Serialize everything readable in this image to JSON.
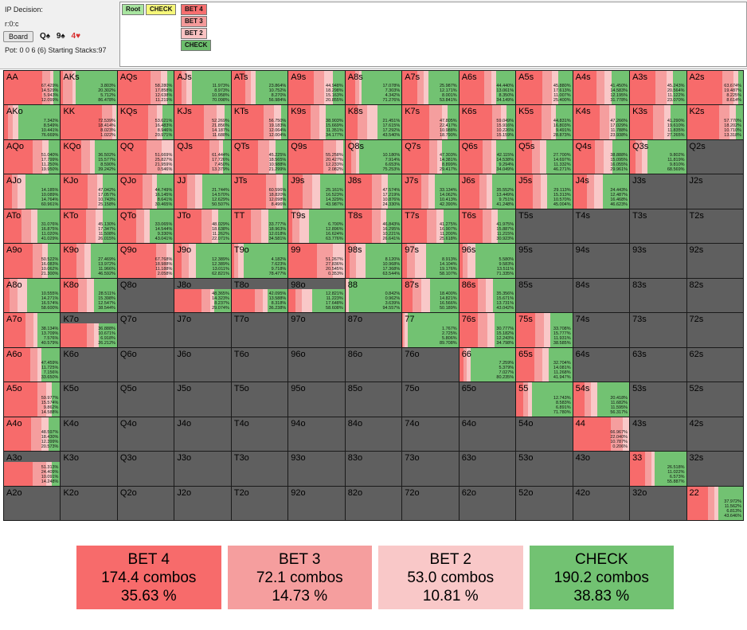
{
  "header": {
    "decision_label": "IP Decision:",
    "line": "r:0:c",
    "board_button": "Board",
    "board_cards": [
      {
        "text": "Q♠",
        "color": "black"
      },
      {
        "text": "9♠",
        "color": "black"
      },
      {
        "text": "4♥",
        "color": "red"
      }
    ],
    "pot_text": "Pot: 0 0 6 (6) Starting Stacks:97"
  },
  "tree": {
    "nodes": [
      {
        "label": "Root",
        "color": "#a8e5a0"
      },
      {
        "label": "CHECK",
        "color": "#f6f77a"
      },
      {
        "label": "BET 4",
        "color": "#f66f6f"
      },
      {
        "label": "BET 3",
        "color": "#f49a9a"
      },
      {
        "label": "BET 2",
        "color": "#f9c2c2"
      },
      {
        "label": "CHECK",
        "color": "#6cbd6c"
      }
    ]
  },
  "colors": {
    "bet4": "#f76b6b",
    "bet3": "#f59e9e",
    "bet2": "#f9c8c8",
    "check": "#72c272",
    "empty": "#5f5f5f"
  },
  "grid": [
    [
      {
        "hand": "AA",
        "f": [
          67.429,
          14.529,
          5.943,
          12.099
        ]
      },
      {
        "hand": "AKs",
        "f": [
          3.803,
          20.302,
          5.712,
          86.478
        ]
      },
      {
        "hand": "AQs",
        "f": [
          58.28,
          17.858,
          12.638,
          11.219
        ]
      },
      {
        "hand": "AJs",
        "f": [
          11.973,
          8.973,
          10.958,
          70.098
        ]
      },
      {
        "hand": "ATs",
        "f": [
          23.864,
          10.752,
          8.27,
          56.984
        ]
      },
      {
        "hand": "A9s",
        "f": [
          44.948,
          18.298,
          15.163,
          20.855
        ]
      },
      {
        "hand": "A8s",
        "f": [
          17.078,
          7.303,
          4.342,
          71.276
        ]
      },
      {
        "hand": "A7s",
        "f": [
          25.987,
          12.171,
          8.001,
          53.841
        ]
      },
      {
        "hand": "A6s",
        "f": [
          44.44,
          13.061,
          8.35,
          34.149
        ]
      },
      {
        "hand": "A5s",
        "f": [
          45.88,
          17.613,
          11.007,
          25.4
        ]
      },
      {
        "hand": "A4s",
        "f": [
          41.45,
          14.583,
          12.195,
          31.778
        ]
      },
      {
        "hand": "A3s",
        "f": [
          45.243,
          20.564,
          11.122,
          23.07
        ]
      },
      {
        "hand": "A2s",
        "f": [
          63.674,
          19.487,
          8.225,
          8.614
        ]
      }
    ],
    [
      {
        "hand": "AKo",
        "f": [
          7.342,
          8.549,
          10.441,
          76.669
        ]
      },
      {
        "hand": "KK",
        "f": [
          72.539,
          18.414,
          8.023,
          1.022
        ]
      },
      {
        "hand": "KQs",
        "f": [
          53.621,
          16.483,
          8.946,
          20.971
        ]
      },
      {
        "hand": "KJs",
        "f": [
          52.269,
          21.856,
          14.187,
          11.688
        ]
      },
      {
        "hand": "KTs",
        "f": [
          56.75,
          19.183,
          12.064,
          12.004
        ]
      },
      {
        "hand": "K9s",
        "f": [
          38.903,
          15.669,
          11.351,
          34.177
        ]
      },
      {
        "hand": "K8s",
        "f": [
          21.451,
          17.615,
          17.292,
          43.54
        ]
      },
      {
        "hand": "K7s",
        "f": [
          47.805,
          22.417,
          10.988,
          18.79
        ]
      },
      {
        "hand": "K6s",
        "f": [
          59.049,
          15.916,
          10.226,
          15.159
        ]
      },
      {
        "hand": "K5s",
        "f": [
          44.831,
          16.803,
          9.491,
          28.873
        ]
      },
      {
        "hand": "K4s",
        "f": [
          47.266,
          17.029,
          11.788,
          23.938
        ]
      },
      {
        "hand": "K3s",
        "f": [
          41.29,
          19.61,
          11.835,
          27.265
        ]
      },
      {
        "hand": "K2s",
        "f": [
          57.77,
          18.202,
          10.71,
          13.318
        ]
      }
    ],
    [
      {
        "hand": "AQo",
        "f": [
          51.04,
          17.799,
          11.25,
          19.95
        ]
      },
      {
        "hand": "KQo",
        "f": [
          36.502,
          15.577,
          8.59,
          39.242
        ]
      },
      {
        "hand": "QQ",
        "f": [
          51.669,
          25.827,
          21.959,
          0.546
        ]
      },
      {
        "hand": "QJs",
        "f": [
          61.444,
          17.726,
          7.45,
          13.379
        ]
      },
      {
        "hand": "QTs",
        "f": [
          45.225,
          18.565,
          10.988,
          21.299
        ]
      },
      {
        "hand": "Q9s",
        "f": [
          55.258,
          20.427,
          12.233,
          2.082
        ]
      },
      {
        "hand": "Q8s",
        "f": [
          10.18,
          7.914,
          6.653,
          75.253
        ]
      },
      {
        "hand": "Q7s",
        "f": [
          47.303,
          14.381,
          8.899,
          29.417
        ]
      },
      {
        "hand": "Q6s",
        "f": [
          42.115,
          14.538,
          9.294,
          34.049
        ]
      },
      {
        "hand": "Q5s",
        "f": [
          27.7,
          14.697,
          11.332,
          46.271
        ]
      },
      {
        "hand": "Q4s",
        "f": [
          38.888,
          15.095,
          16.055,
          29.961
        ]
      },
      {
        "hand": "Q3s",
        "f": [
          9.802,
          11.819,
          9.81,
          68.569
        ]
      },
      {
        "hand": "Q2s",
        "f": null
      }
    ],
    [
      {
        "hand": "AJo",
        "f": [
          14.185,
          10.089,
          14.764,
          60.961
        ]
      },
      {
        "hand": "KJo",
        "f": [
          47.042,
          17.057,
          10.743,
          25.158
        ]
      },
      {
        "hand": "QJo",
        "f": [
          44.749,
          16.145,
          8.641,
          30.465
        ]
      },
      {
        "hand": "JJ",
        "f": [
          21.744,
          14.57,
          12.629,
          50.507
        ]
      },
      {
        "hand": "JTs",
        "f": [
          60.596,
          18.82,
          12.098,
          8.496
        ]
      },
      {
        "hand": "J9s",
        "f": [
          25.161,
          16.523,
          14.329,
          43.987
        ]
      },
      {
        "hand": "J8s",
        "f": [
          47.574,
          17.219,
          10.876,
          24.33
        ]
      },
      {
        "hand": "J7s",
        "f": [
          33.134,
          14.062,
          10.413,
          42.39
        ]
      },
      {
        "hand": "J6s",
        "f": [
          35.552,
          13.449,
          9.751,
          41.248
        ]
      },
      {
        "hand": "J5s",
        "f": [
          29.113,
          15.313,
          10.57,
          45.004
        ]
      },
      {
        "hand": "J4s",
        "f": [
          24.443,
          12.487,
          16.468,
          46.623
        ]
      },
      {
        "hand": "J3s",
        "f": null
      },
      {
        "hand": "J2s",
        "f": null
      }
    ],
    [
      {
        "hand": "ATo",
        "f": [
          31.076,
          16.875,
          11.02,
          41.029
        ]
      },
      {
        "hand": "KTo",
        "f": [
          45.13,
          17.347,
          11.508,
          26.015
        ]
      },
      {
        "hand": "QTo",
        "f": [
          33.065,
          14.544,
          9.33,
          43.041
        ]
      },
      {
        "hand": "JTo",
        "f": [
          48.029,
          18.638,
          11.262,
          22.071
        ]
      },
      {
        "hand": "TT",
        "f": [
          33.777,
          18.963,
          12.018,
          34.581
        ]
      },
      {
        "hand": "T9s",
        "f": [
          6.7,
          12.896,
          16.624,
          63.776
        ]
      },
      {
        "hand": "T8s",
        "f": [
          46.843,
          16.295,
          10.221,
          26.641
        ]
      },
      {
        "hand": "T7s",
        "f": [
          41.275,
          16.907,
          11.2,
          25.618
        ]
      },
      {
        "hand": "T6s",
        "f": [
          41.975,
          15.887,
          11.215,
          30.923
        ]
      },
      {
        "hand": "T5s",
        "f": null
      },
      {
        "hand": "T4s",
        "f": null
      },
      {
        "hand": "T3s",
        "f": null
      },
      {
        "hand": "T2s",
        "f": null
      }
    ],
    [
      {
        "hand": "A9o",
        "f": [
          50.522,
          16.083,
          10.062,
          21.3
        ]
      },
      {
        "hand": "K9o",
        "f": [
          27.469,
          13.972,
          11.966,
          46.592
        ]
      },
      {
        "hand": "Q9o",
        "f": [
          67.768,
          18.988,
          11.188,
          2.058
        ]
      },
      {
        "hand": "J9o",
        "f": [
          12.389,
          12.389,
          13.011,
          62.821
        ]
      },
      {
        "hand": "T9o",
        "f": [
          4.182,
          7.623,
          9.718,
          78.477
        ]
      },
      {
        "hand": "99",
        "f": [
          51.267,
          27.836,
          20.545,
          0.353
        ]
      },
      {
        "hand": "98s",
        "f": [
          8.12,
          10.968,
          17.368,
          63.544
        ]
      },
      {
        "hand": "97s",
        "f": [
          8.913,
          14.104,
          19.176,
          58.107
        ]
      },
      {
        "hand": "96s",
        "f": [
          5.58,
          9.583,
          13.511,
          71.335
        ]
      },
      {
        "hand": "95s",
        "f": null
      },
      {
        "hand": "94s",
        "f": null
      },
      {
        "hand": "93s",
        "f": null
      },
      {
        "hand": "92s",
        "f": null
      }
    ],
    [
      {
        "hand": "A8o",
        "f": [
          10.555,
          14.271,
          16.574,
          58.6
        ]
      },
      {
        "hand": "K8o",
        "f": [
          28.511,
          15.398,
          12.547,
          38.544
        ]
      },
      {
        "hand": "Q8o",
        "f": null
      },
      {
        "hand": "J8o",
        "f": [
          48.365,
          14.323,
          8.237,
          29.074
        ],
        "mixed": true
      },
      {
        "hand": "T8o",
        "f": [
          42.095,
          13.588,
          8.318,
          36.238
        ],
        "mixed": true
      },
      {
        "hand": "98o",
        "f": [
          12.821,
          11.223,
          17.648,
          58.608
        ],
        "mixed": true
      },
      {
        "hand": "88",
        "f": [
          0.842,
          0.962,
          3.639,
          94.557
        ]
      },
      {
        "hand": "87s",
        "f": [
          18.4,
          14.821,
          16.566,
          50.189
        ]
      },
      {
        "hand": "86s",
        "f": [
          35.356,
          15.671,
          13.731,
          43.042
        ]
      },
      {
        "hand": "85s",
        "f": null
      },
      {
        "hand": "84s",
        "f": null
      },
      {
        "hand": "83s",
        "f": null
      },
      {
        "hand": "82s",
        "f": null
      }
    ],
    [
      {
        "hand": "A7o",
        "f": [
          38.134,
          13.709,
          7.576,
          40.579
        ]
      },
      {
        "hand": "K7o",
        "f": [
          36.888,
          10.671,
          6.918,
          26.212
        ],
        "mixed": true
      },
      {
        "hand": "Q7o",
        "f": null
      },
      {
        "hand": "J7o",
        "f": null
      },
      {
        "hand": "T7o",
        "f": null
      },
      {
        "hand": "97o",
        "f": null
      },
      {
        "hand": "87o",
        "f": null
      },
      {
        "hand": "77",
        "f": [
          1.767,
          2.725,
          5.806,
          89.708
        ]
      },
      {
        "hand": "76s",
        "f": [
          30.777,
          15.182,
          12.243,
          34.798
        ]
      },
      {
        "hand": "75s",
        "f": [
          33.708,
          15.777,
          11.931,
          38.585
        ]
      },
      {
        "hand": "74s",
        "f": null
      },
      {
        "hand": "73s",
        "f": null
      },
      {
        "hand": "72s",
        "f": null
      }
    ],
    [
      {
        "hand": "A6o",
        "f": [
          47.459,
          11.725,
          7.156,
          33.65
        ]
      },
      {
        "hand": "K6o",
        "f": null
      },
      {
        "hand": "Q6o",
        "f": null
      },
      {
        "hand": "J6o",
        "f": null
      },
      {
        "hand": "T6o",
        "f": null
      },
      {
        "hand": "96o",
        "f": null
      },
      {
        "hand": "86o",
        "f": null
      },
      {
        "hand": "76o",
        "f": null
      },
      {
        "hand": "66",
        "f": [
          7.259,
          5.379,
          7.027,
          80.235
        ]
      },
      {
        "hand": "65s",
        "f": [
          32.704,
          14.081,
          11.268,
          41.947
        ]
      },
      {
        "hand": "64s",
        "f": null
      },
      {
        "hand": "63s",
        "f": null
      },
      {
        "hand": "62s",
        "f": null
      }
    ],
    [
      {
        "hand": "A5o",
        "f": [
          59.977,
          15.574,
          9.862,
          14.588
        ]
      },
      {
        "hand": "K5o",
        "f": null
      },
      {
        "hand": "Q5o",
        "f": null
      },
      {
        "hand": "J5o",
        "f": null
      },
      {
        "hand": "T5o",
        "f": null
      },
      {
        "hand": "95o",
        "f": null
      },
      {
        "hand": "85o",
        "f": null
      },
      {
        "hand": "75o",
        "f": null
      },
      {
        "hand": "65o",
        "f": null
      },
      {
        "hand": "55",
        "f": [
          12.743,
          8.583,
          6.891,
          71.78
        ]
      },
      {
        "hand": "54s",
        "f": [
          20.418,
          11.682,
          11.595,
          56.317
        ]
      },
      {
        "hand": "53s",
        "f": null
      },
      {
        "hand": "52s",
        "f": null
      }
    ],
    [
      {
        "hand": "A4o",
        "f": [
          48.597,
          18.43,
          12.399,
          20.573
        ]
      },
      {
        "hand": "K4o",
        "f": null
      },
      {
        "hand": "Q4o",
        "f": null
      },
      {
        "hand": "J4o",
        "f": null
      },
      {
        "hand": "T4o",
        "f": null
      },
      {
        "hand": "94o",
        "f": null
      },
      {
        "hand": "84o",
        "f": null
      },
      {
        "hand": "74o",
        "f": null
      },
      {
        "hand": "64o",
        "f": null
      },
      {
        "hand": "54o",
        "f": null
      },
      {
        "hand": "44",
        "f": [
          66.967,
          22.04,
          10.787,
          0.206
        ]
      },
      {
        "hand": "43s",
        "f": null
      },
      {
        "hand": "42s",
        "f": null
      }
    ],
    [
      {
        "hand": "A3o",
        "f": [
          51.313,
          24.409,
          10.091,
          14.248
        ],
        "mixed": true
      },
      {
        "hand": "K3o",
        "f": null
      },
      {
        "hand": "Q3o",
        "f": null
      },
      {
        "hand": "J3o",
        "f": null
      },
      {
        "hand": "T3o",
        "f": null
      },
      {
        "hand": "93o",
        "f": null
      },
      {
        "hand": "83o",
        "f": null
      },
      {
        "hand": "73o",
        "f": null
      },
      {
        "hand": "63o",
        "f": null
      },
      {
        "hand": "53o",
        "f": null
      },
      {
        "hand": "43o",
        "f": null
      },
      {
        "hand": "33",
        "f": [
          26.518,
          11.022,
          6.573,
          55.887
        ]
      },
      {
        "hand": "32s",
        "f": null
      }
    ],
    [
      {
        "hand": "A2o",
        "f": null
      },
      {
        "hand": "K2o",
        "f": null
      },
      {
        "hand": "Q2o",
        "f": null
      },
      {
        "hand": "J2o",
        "f": null
      },
      {
        "hand": "T2o",
        "f": null
      },
      {
        "hand": "92o",
        "f": null
      },
      {
        "hand": "82o",
        "f": null
      },
      {
        "hand": "72o",
        "f": null
      },
      {
        "hand": "62o",
        "f": null
      },
      {
        "hand": "52o",
        "f": null
      },
      {
        "hand": "42o",
        "f": null
      },
      {
        "hand": "32o",
        "f": null
      },
      {
        "hand": "22",
        "f": [
          37.972,
          11.562,
          6.813,
          43.646
        ]
      }
    ]
  ],
  "summary": [
    {
      "action": "BET 4",
      "combos": "174.4 combos",
      "pct": "35.63 %",
      "color": "#f76b6b"
    },
    {
      "action": "BET 3",
      "combos": "72.1 combos",
      "pct": "14.73 %",
      "color": "#f59e9e"
    },
    {
      "action": "BET 2",
      "combos": "53.0 combos",
      "pct": "10.81 %",
      "color": "#f9c8c8"
    },
    {
      "action": "CHECK",
      "combos": "190.2 combos",
      "pct": "38.83 %",
      "color": "#72c272"
    }
  ]
}
